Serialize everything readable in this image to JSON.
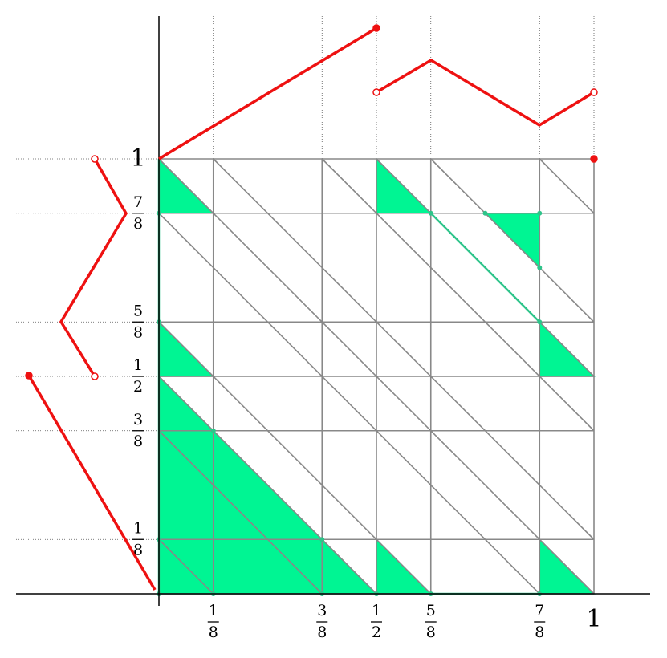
{
  "x_labels": [
    [
      "1",
      "8"
    ],
    [
      "3",
      "8"
    ],
    [
      "1",
      "2"
    ],
    [
      "5",
      "8"
    ],
    [
      "7",
      "8"
    ],
    [
      "1"
    ]
  ],
  "y_labels": [
    [
      "1",
      "8"
    ],
    [
      "3",
      "8"
    ],
    [
      "1",
      "2"
    ],
    [
      "5",
      "8"
    ],
    [
      "7",
      "8"
    ],
    [
      "1"
    ]
  ]
}
